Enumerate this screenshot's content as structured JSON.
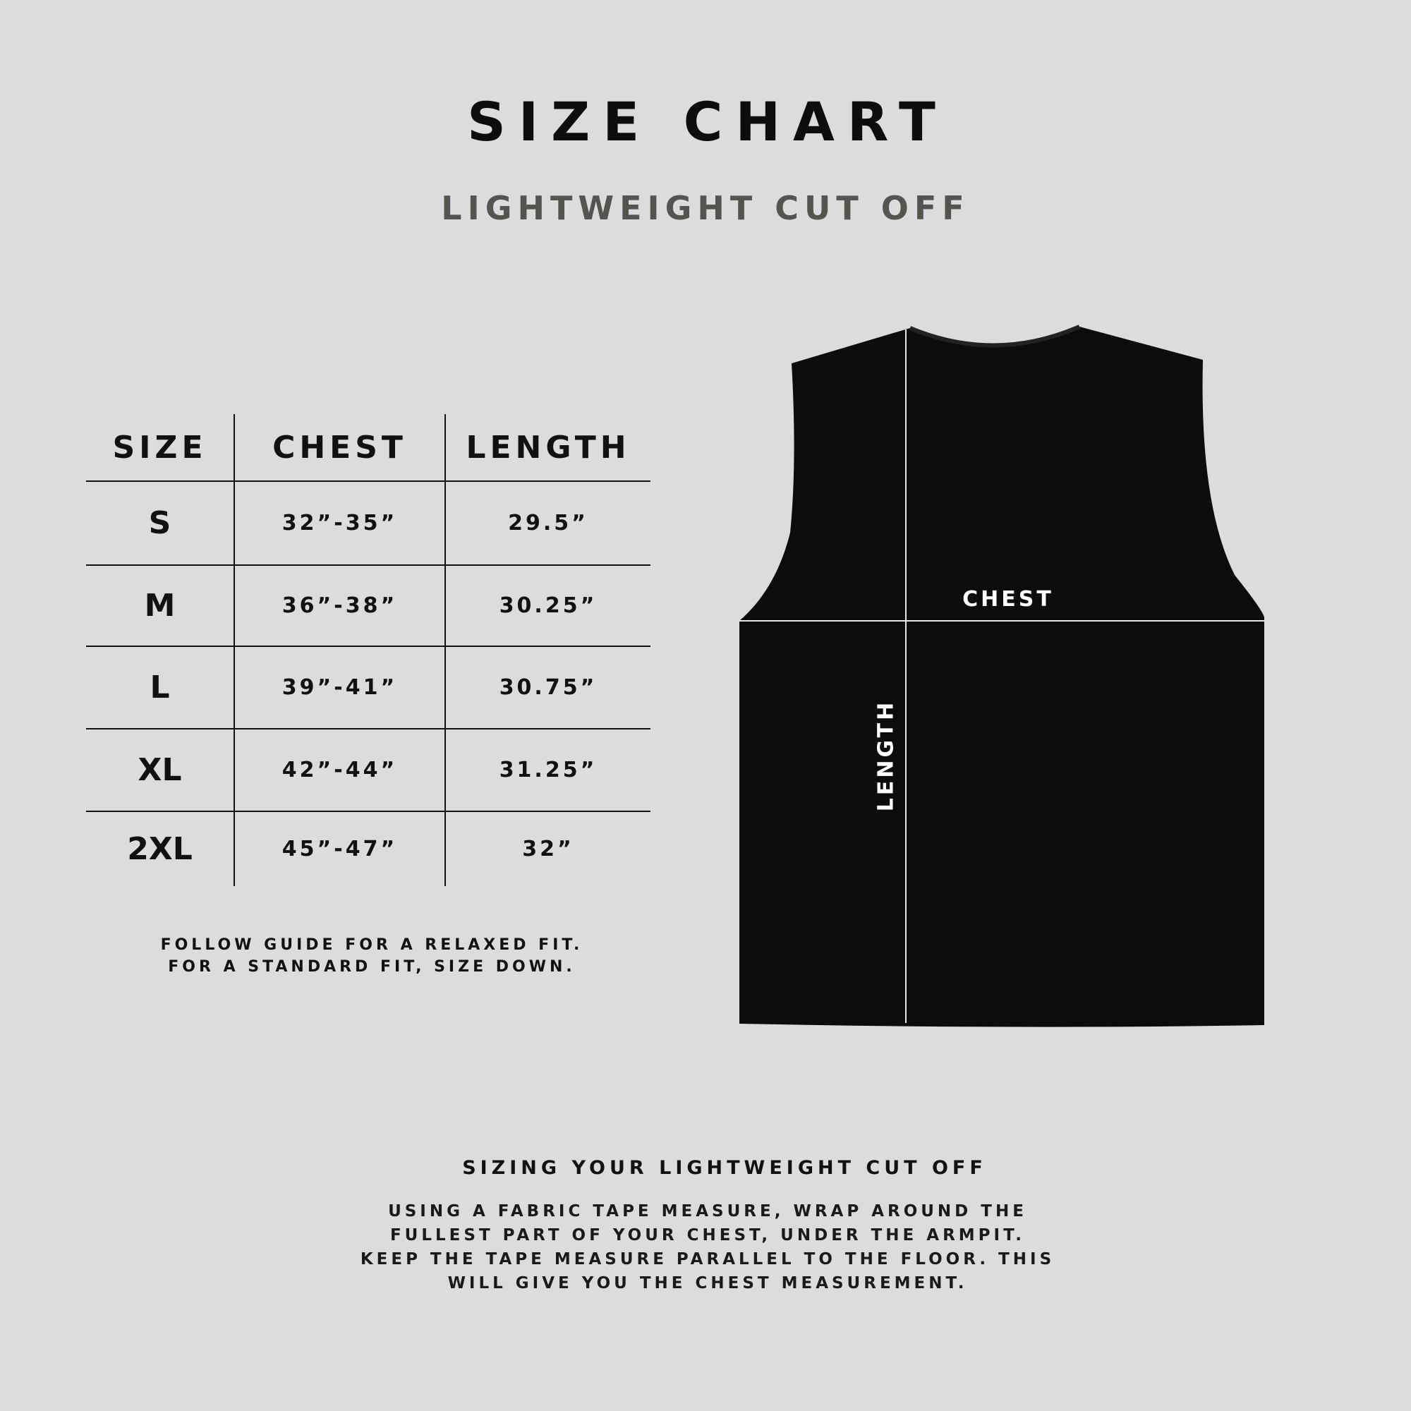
{
  "header": {
    "title": "SIZE CHART",
    "subtitle": "LIGHTWEIGHT CUT OFF"
  },
  "table": {
    "columns": [
      "SIZE",
      "CHEST",
      "LENGTH"
    ],
    "rows": [
      {
        "size": "S",
        "chest": "32”-35”",
        "length": "29.5”"
      },
      {
        "size": "M",
        "chest": "36”-38”",
        "length": "30.25”"
      },
      {
        "size": "L",
        "chest": "39”-41”",
        "length": "30.75”"
      },
      {
        "size": "XL",
        "chest": "42”-44”",
        "length": "31.25”"
      },
      {
        "size": "2XL",
        "chest": "45”-47”",
        "length": "32”"
      }
    ]
  },
  "fit_note": [
    "FOLLOW GUIDE FOR A RELAXED FIT.",
    "FOR A STANDARD FIT, SIZE DOWN."
  ],
  "diagram": {
    "chest_label": "CHEST",
    "length_label": "LENGTH",
    "shirt_color": "#0c0c0c"
  },
  "guide": {
    "heading": "SIZING YOUR LIGHTWEIGHT CUT OFF",
    "lines": [
      "USING A FABRIC TAPE MEASURE, WRAP AROUND THE",
      "FULLEST PART OF YOUR CHEST, UNDER THE ARMPIT.",
      "KEEP THE TAPE MEASURE PARALLEL TO THE FLOOR. THIS",
      "WILL GIVE YOU THE CHEST MEASUREMENT."
    ]
  }
}
